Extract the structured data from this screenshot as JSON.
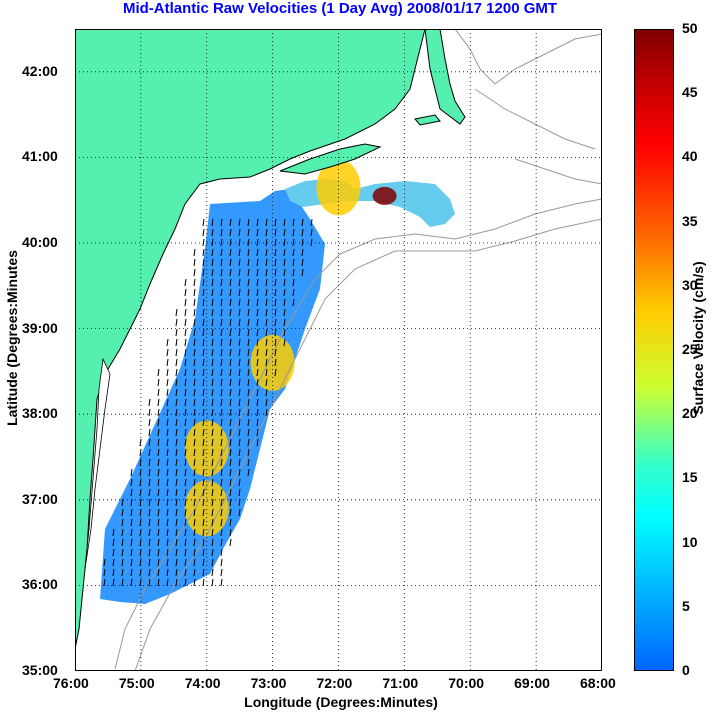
{
  "title": "Mid-Atlantic Raw Velocities (1 Day Avg) 2008/01/17 1200 GMT",
  "xlabel": "Longitude (Degrees:Minutes)",
  "ylabel": "Latitude (Degrees:Minutes",
  "x_ticks": [
    "76:00",
    "75:00",
    "74:00",
    "73:00",
    "72:00",
    "71:00",
    "70:00",
    "69:00",
    "68:00"
  ],
  "y_ticks": [
    "42:00",
    "41:00",
    "40:00",
    "39:00",
    "38:00",
    "37:00",
    "36:00",
    "35:00"
  ],
  "colorbar": {
    "label": "Surface Velocity (cm/s)",
    "ticks": [
      "50",
      "45",
      "40",
      "35",
      "30",
      "25",
      "20",
      "15",
      "10",
      "5",
      "0"
    ],
    "range": [
      0,
      50
    ]
  },
  "colors": {
    "land": "#55efb0",
    "ocean": "#ffffff",
    "title": "#0000ff",
    "velocity_field": "#3399ff",
    "isobath": "#999999"
  },
  "map": {
    "lon_range": [
      -76,
      -68
    ],
    "lat_range": [
      35,
      42.5
    ],
    "grid": "dotted",
    "velocity_hotspots": [
      {
        "lon": -71.3,
        "lat": 40.55,
        "speed": 50
      },
      {
        "lon": -74.0,
        "lat": 37.6,
        "speed": 28
      },
      {
        "lon": -73.0,
        "lat": 38.6,
        "speed": 25
      },
      {
        "lon": -72.0,
        "lat": 40.65,
        "speed": 25
      },
      {
        "lon": -74.0,
        "lat": 36.9,
        "speed": 24
      }
    ]
  }
}
